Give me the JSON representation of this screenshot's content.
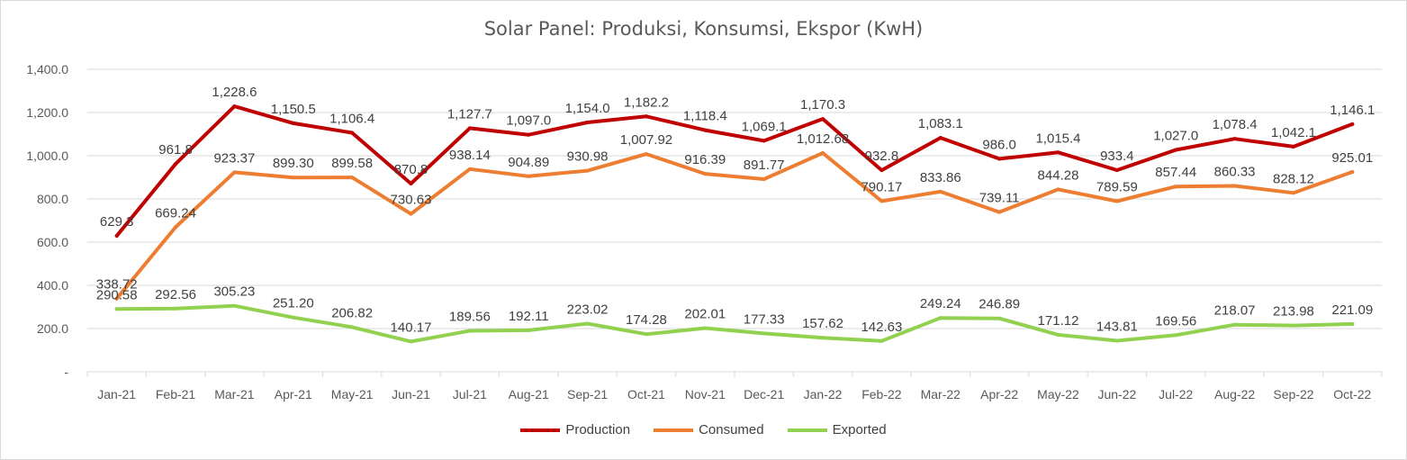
{
  "chart_data": {
    "type": "line",
    "title": "Solar Panel: Produksi, Konsumsi, Ekspor (KwH)",
    "xlabel": "",
    "ylabel": "",
    "ylim": [
      0,
      1400
    ],
    "yticks": [
      "-",
      "200.0",
      "400.0",
      "600.0",
      "800.0",
      "1,000.0",
      "1,200.0",
      "1,400.0"
    ],
    "grid": true,
    "legend_position": "bottom",
    "categories": [
      "Jan-21",
      "Feb-21",
      "Mar-21",
      "Apr-21",
      "May-21",
      "Jun-21",
      "Jul-21",
      "Aug-21",
      "Sep-21",
      "Oct-21",
      "Nov-21",
      "Dec-21",
      "Jan-22",
      "Feb-22",
      "Mar-22",
      "Apr-22",
      "May-22",
      "Jun-22",
      "Jul-22",
      "Aug-22",
      "Sep-22",
      "Oct-22"
    ],
    "series": [
      {
        "name": "Production",
        "color": "#c00000",
        "values": [
          629.3,
          961.8,
          1228.6,
          1150.5,
          1106.4,
          870.8,
          1127.7,
          1097.0,
          1154.0,
          1182.2,
          1118.4,
          1069.1,
          1170.3,
          932.8,
          1083.1,
          986.0,
          1015.4,
          933.4,
          1027.0,
          1078.4,
          1042.1,
          1146.1
        ],
        "labels": [
          "629.3",
          "961.8",
          "1,228.6",
          "1,150.5",
          "1,106.4",
          "870.8",
          "1,127.7",
          "1,097.0",
          "1,154.0",
          "1,182.2",
          "1,118.4",
          "1,069.1",
          "1,170.3",
          "932.8",
          "1,083.1",
          "986.0",
          "1,015.4",
          "933.4",
          "1,027.0",
          "1,078.4",
          "1,042.1",
          "1,146.1"
        ]
      },
      {
        "name": "Consumed",
        "color": "#ed7d31",
        "values": [
          338.72,
          669.24,
          923.37,
          899.3,
          899.58,
          730.63,
          938.14,
          904.89,
          930.98,
          1007.92,
          916.39,
          891.77,
          1012.68,
          790.17,
          833.86,
          739.11,
          844.28,
          789.59,
          857.44,
          860.33,
          828.12,
          925.01
        ],
        "labels": [
          "338.72",
          "669.24",
          "923.37",
          "899.30",
          "899.58",
          "730.63",
          "938.14",
          "904.89",
          "930.98",
          "1,007.92",
          "916.39",
          "891.77",
          "1,012.68",
          "790.17",
          "833.86",
          "739.11",
          "844.28",
          "789.59",
          "857.44",
          "860.33",
          "828.12",
          "925.01"
        ]
      },
      {
        "name": "Exported",
        "color": "#92d050",
        "values": [
          290.58,
          292.56,
          305.23,
          251.2,
          206.82,
          140.17,
          189.56,
          192.11,
          223.02,
          174.28,
          202.01,
          177.33,
          157.62,
          142.63,
          249.24,
          246.89,
          171.12,
          143.81,
          169.56,
          218.07,
          213.98,
          221.09
        ],
        "labels": [
          "290.58",
          "292.56",
          "305.23",
          "251.20",
          "206.82",
          "140.17",
          "189.56",
          "192.11",
          "223.02",
          "174.28",
          "202.01",
          "177.33",
          "157.62",
          "142.63",
          "249.24",
          "246.89",
          "171.12",
          "143.81",
          "169.56",
          "218.07",
          "213.98",
          "221.09"
        ]
      }
    ]
  }
}
